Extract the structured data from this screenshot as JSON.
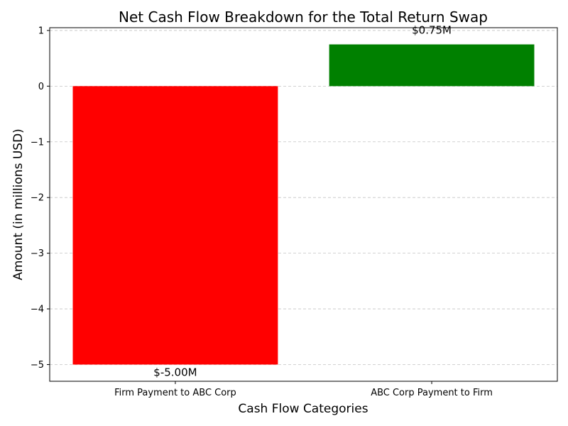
{
  "chart_data": {
    "type": "bar",
    "title": "Net Cash Flow Breakdown for the Total Return Swap",
    "xlabel": "Cash Flow Categories",
    "ylabel": "Amount (in millions USD)",
    "categories": [
      "Firm Payment to ABC Corp",
      "ABC Corp Payment to Firm"
    ],
    "values": [
      -5.0,
      0.75
    ],
    "data_labels": [
      "$-5.00M",
      "$0.75M"
    ],
    "colors": [
      "#ff0000",
      "#008000"
    ],
    "ylim": [
      -5.3,
      1.05
    ],
    "yticks": [
      -5,
      -4,
      -3,
      -2,
      -1,
      0,
      1
    ],
    "ytick_labels": [
      "−5",
      "−4",
      "−3",
      "−2",
      "−1",
      "0",
      "1"
    ],
    "grid": true,
    "grid_axis": "y"
  }
}
